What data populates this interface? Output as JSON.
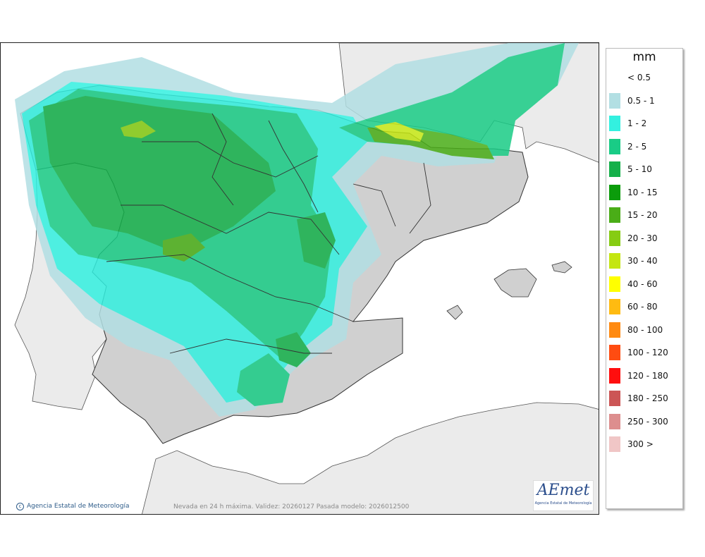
{
  "legend": {
    "unit": "mm",
    "classes": [
      {
        "label": "< 0.5",
        "color": "#ffffff"
      },
      {
        "label": "0.5 - 1",
        "color": "#b2dfe3"
      },
      {
        "label": "1 - 2",
        "color": "#33f0e0"
      },
      {
        "label": "2 - 5",
        "color": "#19cc86"
      },
      {
        "label": "5 - 10",
        "color": "#14b04a"
      },
      {
        "label": "10 - 15",
        "color": "#0b9c0b"
      },
      {
        "label": "15 - 20",
        "color": "#4aad17"
      },
      {
        "label": "20 - 30",
        "color": "#86cc12"
      },
      {
        "label": "30 - 40",
        "color": "#c4e611"
      },
      {
        "label": "40 - 60",
        "color": "#ffff00"
      },
      {
        "label": "60 - 80",
        "color": "#ffbb11"
      },
      {
        "label": "80 - 100",
        "color": "#ff8a11"
      },
      {
        "label": "100 - 120",
        "color": "#ff4c11"
      },
      {
        "label": "120 - 180",
        "color": "#ff0e0e"
      },
      {
        "label": "180 - 250",
        "color": "#cc5555"
      },
      {
        "label": "250 - 300",
        "color": "#dd8e8e"
      },
      {
        "label": "300 >",
        "color": "#f0c6c6"
      }
    ]
  },
  "footer": {
    "credit": "Agencia Estatal de Meteorología",
    "validity": "Nevada en 24 h máxima. Validez: 20260127 Pasada modelo: 2026012500"
  },
  "logo": {
    "text": "AEmet",
    "subtitle": "Agencia Estatal de Meteorología"
  },
  "colors": {
    "sea": "#ffffff",
    "land_outside": "#ebebeb",
    "land_spain": "#d0d0d0",
    "border": "#333333"
  }
}
